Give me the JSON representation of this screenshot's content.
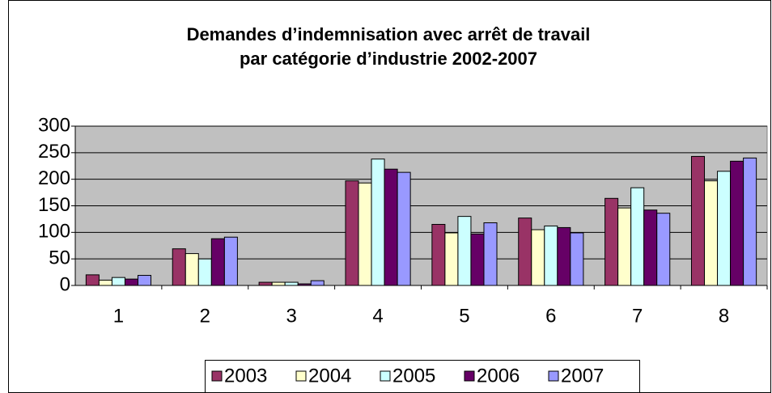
{
  "chart_data": {
    "type": "bar",
    "title": [
      "Demandes d’indemnisation avec arrêt de travail",
      "par catégorie d’industrie 2002-2007"
    ],
    "categories": [
      "1",
      "2",
      "3",
      "4",
      "5",
      "6",
      "7",
      "8"
    ],
    "series": [
      {
        "name": "2003",
        "color": "#993366",
        "values": [
          20,
          69,
          6,
          197,
          115,
          127,
          164,
          243
        ]
      },
      {
        "name": "2004",
        "color": "#FFFFCC",
        "values": [
          10,
          60,
          6,
          193,
          99,
          105,
          146,
          197
        ]
      },
      {
        "name": "2005",
        "color": "#CCFFFF",
        "values": [
          15,
          50,
          6,
          238,
          130,
          112,
          184,
          215
        ]
      },
      {
        "name": "2006",
        "color": "#660066",
        "values": [
          12,
          88,
          3,
          219,
          97,
          109,
          142,
          234
        ]
      },
      {
        "name": "2007",
        "color": "#9999FF",
        "values": [
          19,
          91,
          9,
          213,
          118,
          99,
          136,
          240
        ]
      }
    ],
    "ylim": [
      0,
      300
    ],
    "yticks": [
      0,
      50,
      100,
      150,
      200,
      250,
      300
    ],
    "grid": true,
    "legend": "bottom"
  }
}
